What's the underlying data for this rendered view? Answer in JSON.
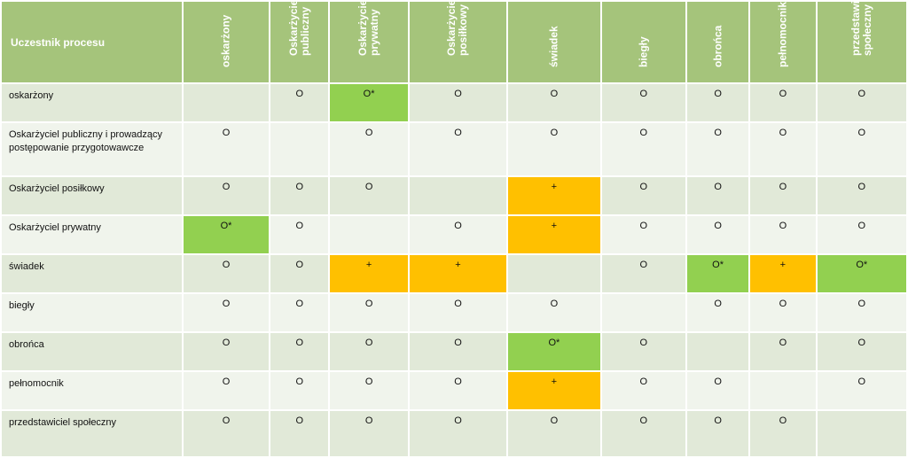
{
  "header": {
    "corner": "Uczestnik procesu",
    "columns": [
      "oskarżony",
      "Oskarżyciel publiczny",
      "Oskarżyciel prywatny",
      "Oskarżyciel posiłkowy",
      "świadek",
      "biegły",
      "obrońca",
      "pełnomocnik",
      "przedstawiciel społeczny"
    ]
  },
  "colors": {
    "header_bg": "#a5c47b",
    "green": "#92d050",
    "orange": "#ffc000"
  },
  "rows": [
    {
      "label": "oskarżony",
      "cells": [
        {
          "v": "",
          "h": ""
        },
        {
          "v": "O",
          "h": ""
        },
        {
          "v": "O*",
          "h": "green"
        },
        {
          "v": "O",
          "h": ""
        },
        {
          "v": "O",
          "h": ""
        },
        {
          "v": "O",
          "h": ""
        },
        {
          "v": "O",
          "h": ""
        },
        {
          "v": "O",
          "h": ""
        },
        {
          "v": "O",
          "h": ""
        }
      ]
    },
    {
      "label": "Oskarżyciel publiczny i prowadzący postępowanie przygotowawcze",
      "cells": [
        {
          "v": "O",
          "h": ""
        },
        {
          "v": "",
          "h": ""
        },
        {
          "v": "O",
          "h": ""
        },
        {
          "v": "O",
          "h": ""
        },
        {
          "v": "O",
          "h": ""
        },
        {
          "v": "O",
          "h": ""
        },
        {
          "v": "O",
          "h": ""
        },
        {
          "v": "O",
          "h": ""
        },
        {
          "v": "O",
          "h": ""
        }
      ]
    },
    {
      "label": "Oskarżyciel posiłkowy",
      "cells": [
        {
          "v": "O",
          "h": ""
        },
        {
          "v": "O",
          "h": ""
        },
        {
          "v": "O",
          "h": ""
        },
        {
          "v": "",
          "h": ""
        },
        {
          "v": "+",
          "h": "orange"
        },
        {
          "v": "O",
          "h": ""
        },
        {
          "v": "O",
          "h": ""
        },
        {
          "v": "O",
          "h": ""
        },
        {
          "v": "O",
          "h": ""
        }
      ]
    },
    {
      "label": "Oskarżyciel prywatny",
      "cells": [
        {
          "v": "O*",
          "h": "green"
        },
        {
          "v": "O",
          "h": ""
        },
        {
          "v": "",
          "h": ""
        },
        {
          "v": "O",
          "h": ""
        },
        {
          "v": "+",
          "h": "orange"
        },
        {
          "v": "O",
          "h": ""
        },
        {
          "v": "O",
          "h": ""
        },
        {
          "v": "O",
          "h": ""
        },
        {
          "v": "O",
          "h": ""
        }
      ]
    },
    {
      "label": "świadek",
      "cells": [
        {
          "v": "O",
          "h": ""
        },
        {
          "v": "O",
          "h": ""
        },
        {
          "v": "+",
          "h": "orange"
        },
        {
          "v": "+",
          "h": "orange"
        },
        {
          "v": "",
          "h": ""
        },
        {
          "v": "O",
          "h": ""
        },
        {
          "v": "O*",
          "h": "green"
        },
        {
          "v": "+",
          "h": "orange"
        },
        {
          "v": "O*",
          "h": "green"
        }
      ]
    },
    {
      "label": "biegły",
      "cells": [
        {
          "v": "O",
          "h": ""
        },
        {
          "v": "O",
          "h": ""
        },
        {
          "v": "O",
          "h": ""
        },
        {
          "v": "O",
          "h": ""
        },
        {
          "v": "O",
          "h": ""
        },
        {
          "v": "",
          "h": ""
        },
        {
          "v": "O",
          "h": ""
        },
        {
          "v": "O",
          "h": ""
        },
        {
          "v": "O",
          "h": ""
        }
      ]
    },
    {
      "label": "obrońca",
      "cells": [
        {
          "v": "O",
          "h": ""
        },
        {
          "v": "O",
          "h": ""
        },
        {
          "v": "O",
          "h": ""
        },
        {
          "v": "O",
          "h": ""
        },
        {
          "v": "O*",
          "h": "green"
        },
        {
          "v": "O",
          "h": ""
        },
        {
          "v": "",
          "h": ""
        },
        {
          "v": "O",
          "h": ""
        },
        {
          "v": "O",
          "h": ""
        }
      ]
    },
    {
      "label": "pełnomocnik",
      "cells": [
        {
          "v": "O",
          "h": ""
        },
        {
          "v": "O",
          "h": ""
        },
        {
          "v": "O",
          "h": ""
        },
        {
          "v": "O",
          "h": ""
        },
        {
          "v": "+",
          "h": "orange"
        },
        {
          "v": "O",
          "h": ""
        },
        {
          "v": "O",
          "h": ""
        },
        {
          "v": "",
          "h": ""
        },
        {
          "v": "O",
          "h": ""
        }
      ]
    },
    {
      "label": "przedstawiciel społeczny",
      "cells": [
        {
          "v": "O",
          "h": ""
        },
        {
          "v": "O",
          "h": ""
        },
        {
          "v": "O",
          "h": ""
        },
        {
          "v": "O",
          "h": ""
        },
        {
          "v": "O",
          "h": ""
        },
        {
          "v": "O",
          "h": ""
        },
        {
          "v": "O",
          "h": ""
        },
        {
          "v": "O",
          "h": ""
        },
        {
          "v": "",
          "h": ""
        }
      ]
    }
  ]
}
